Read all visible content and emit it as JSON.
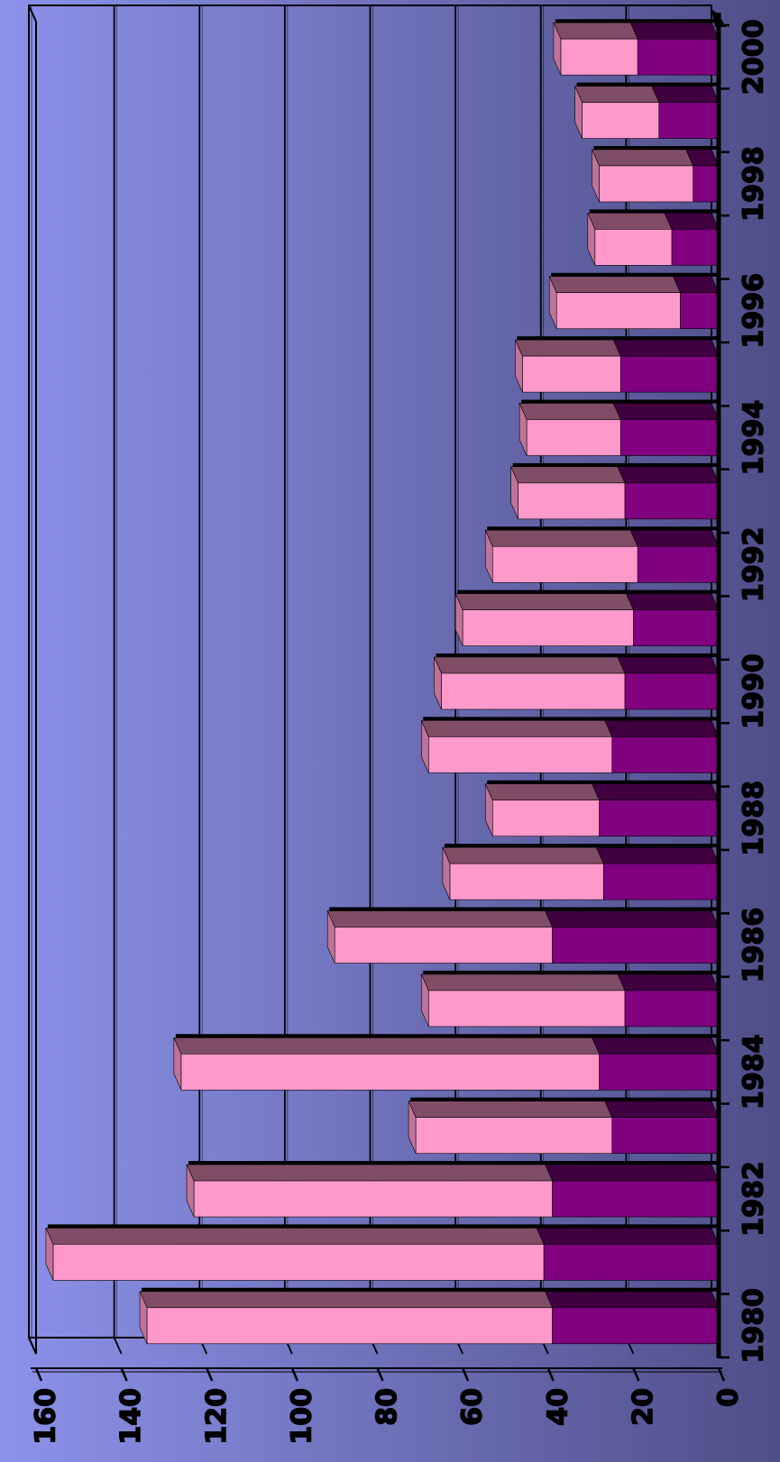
{
  "chart_data": {
    "type": "bar",
    "orientation": "horizontal",
    "stacked": true,
    "categories": [
      "1980",
      "1981",
      "1982",
      "1983",
      "1984",
      "1985",
      "1986",
      "1987",
      "1988",
      "1989",
      "1990",
      "1991",
      "1992",
      "1993",
      "1994",
      "1995",
      "1996",
      "1997",
      "1998",
      "1999",
      "2000"
    ],
    "category_tick_labels": [
      "1980",
      "1982",
      "1984",
      "1986",
      "1988",
      "1990",
      "1992",
      "1994",
      "1996",
      "1998",
      "2000"
    ],
    "series": [
      {
        "color": "#800080",
        "values": [
          39,
          41,
          39,
          25,
          28,
          22,
          39,
          27,
          28,
          25,
          22,
          20,
          19,
          22,
          23,
          23,
          9,
          11,
          6,
          14,
          19
        ]
      },
      {
        "color": "#ff99cc",
        "values": [
          95,
          115,
          84,
          46,
          98,
          46,
          51,
          36,
          25,
          43,
          43,
          40,
          34,
          25,
          22,
          23,
          29,
          18,
          22,
          18,
          18
        ]
      }
    ],
    "value_axis": {
      "range": [
        0,
        160
      ],
      "ticks": [
        0,
        20,
        40,
        60,
        80,
        100,
        120,
        140,
        160
      ]
    },
    "grid": true,
    "legend": "none",
    "title": "",
    "xlabel": "",
    "ylabel": ""
  }
}
